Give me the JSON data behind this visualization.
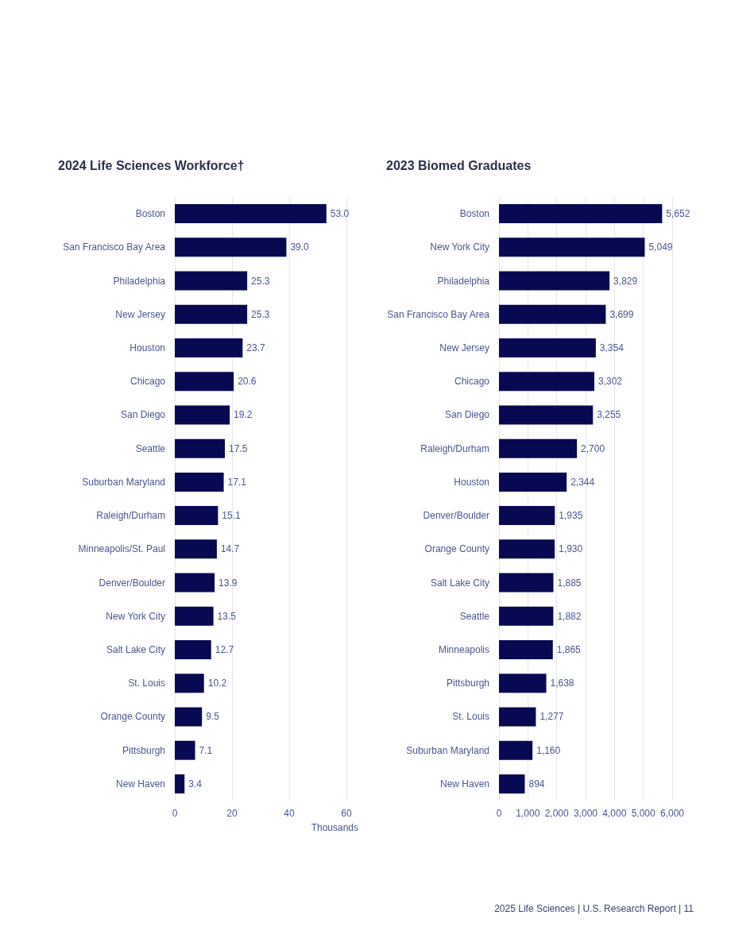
{
  "chart_data": [
    {
      "type": "bar",
      "orientation": "horizontal",
      "title": "2024 Life Sciences Workforce†",
      "xlabel": "Thousands",
      "categories": [
        "Boston",
        "San Francisco Bay Area",
        "Philadelphia",
        "New Jersey",
        "Houston",
        "Chicago",
        "San Diego",
        "Seattle",
        "Suburban Maryland",
        "Raleigh/Durham",
        "Minneapolis/St. Paul",
        "Denver/Boulder",
        "New York City",
        "Salt Lake City",
        "St. Louis",
        "Orange County",
        "Pittsburgh",
        "New Haven"
      ],
      "values": [
        53.0,
        39.0,
        25.3,
        25.3,
        23.7,
        20.6,
        19.2,
        17.5,
        17.1,
        15.1,
        14.7,
        13.9,
        13.5,
        12.7,
        10.2,
        9.5,
        7.1,
        3.4
      ],
      "value_labels": [
        "53.0",
        "39.0",
        "25.3",
        "25.3",
        "23.7",
        "20.6",
        "19.2",
        "17.5",
        "17.1",
        "15.1",
        "14.7",
        "13.9",
        "13.5",
        "12.7",
        "10.2",
        "9.5",
        "7.1",
        "3.4"
      ],
      "color": "#070a52",
      "xlim": [
        0,
        60
      ],
      "xticks": [
        0,
        20,
        40,
        60
      ],
      "grid": "x"
    },
    {
      "type": "bar",
      "orientation": "horizontal",
      "title": "2023 Biomed Graduates",
      "categories": [
        "Boston",
        "New York City",
        "Philadelphia",
        "San Francisco Bay Area",
        "New Jersey",
        "Chicago",
        "San Diego",
        "Raleigh/Durham",
        "Houston",
        "Denver/Boulder",
        "Orange County",
        "Salt Lake City",
        "Seattle",
        "Minneapolis",
        "Pittsburgh",
        "St. Louis",
        "Suburban Maryland",
        "New Haven"
      ],
      "values": [
        5652,
        5049,
        3829,
        3699,
        3354,
        3302,
        3255,
        2700,
        2344,
        1935,
        1930,
        1885,
        1882,
        1865,
        1638,
        1277,
        1160,
        894
      ],
      "value_labels": [
        "5,652",
        "5,049",
        "3,829",
        "3,699",
        "3,354",
        "3,302",
        "3,255",
        "2,700",
        "2,344",
        "1,935",
        "1,930",
        "1,885",
        "1,882",
        "1,865",
        "1,638",
        "1,277",
        "1,160",
        "894"
      ],
      "color": "#070a52",
      "xlim": [
        0,
        6000
      ],
      "xticks": [
        0,
        {
          "value": 1000,
          "label": "1,000"
        },
        {
          "value": 2000,
          "label": "2,000"
        },
        {
          "value": 3000,
          "label": "3,000"
        },
        {
          "value": 4000,
          "label": "4,000"
        },
        {
          "value": 5000,
          "label": "5,000"
        },
        {
          "value": 6000,
          "label": "6,000"
        }
      ],
      "grid": "x",
      "annotations": [
        "2025 Life Sciences | U.S. Research Report | 11"
      ]
    }
  ]
}
